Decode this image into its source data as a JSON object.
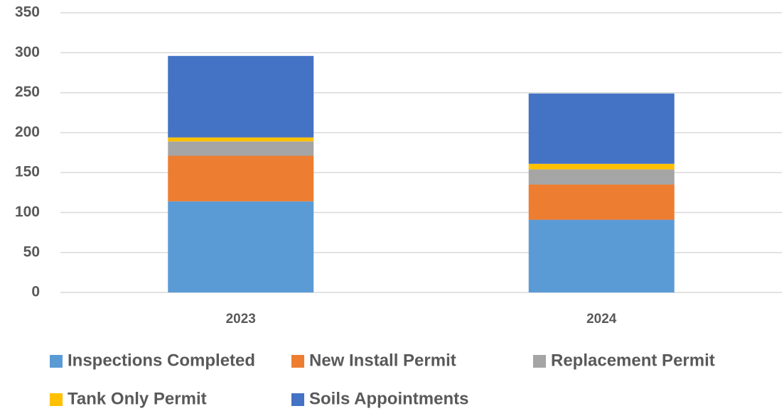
{
  "chart_data": {
    "type": "stacked_bar",
    "categories": [
      "2023",
      "2024"
    ],
    "series": [
      {
        "name": "Inspections Completed",
        "color": "#5b9bd5",
        "values": [
          114,
          91
        ]
      },
      {
        "name": "New Install Permit",
        "color": "#ed7d31",
        "values": [
          57,
          44
        ]
      },
      {
        "name": "Replacement Permit",
        "color": "#a5a5a5",
        "values": [
          18,
          19
        ]
      },
      {
        "name": "Tank Only Permit",
        "color": "#ffc000",
        "values": [
          5,
          7
        ]
      },
      {
        "name": "Soils Appointments",
        "color": "#4472c4",
        "values": [
          102,
          88
        ]
      }
    ],
    "ylim": [
      0,
      350
    ],
    "yticks": [
      0,
      50,
      100,
      150,
      200,
      250,
      300,
      350
    ],
    "grid": true,
    "legend": "bottom"
  }
}
